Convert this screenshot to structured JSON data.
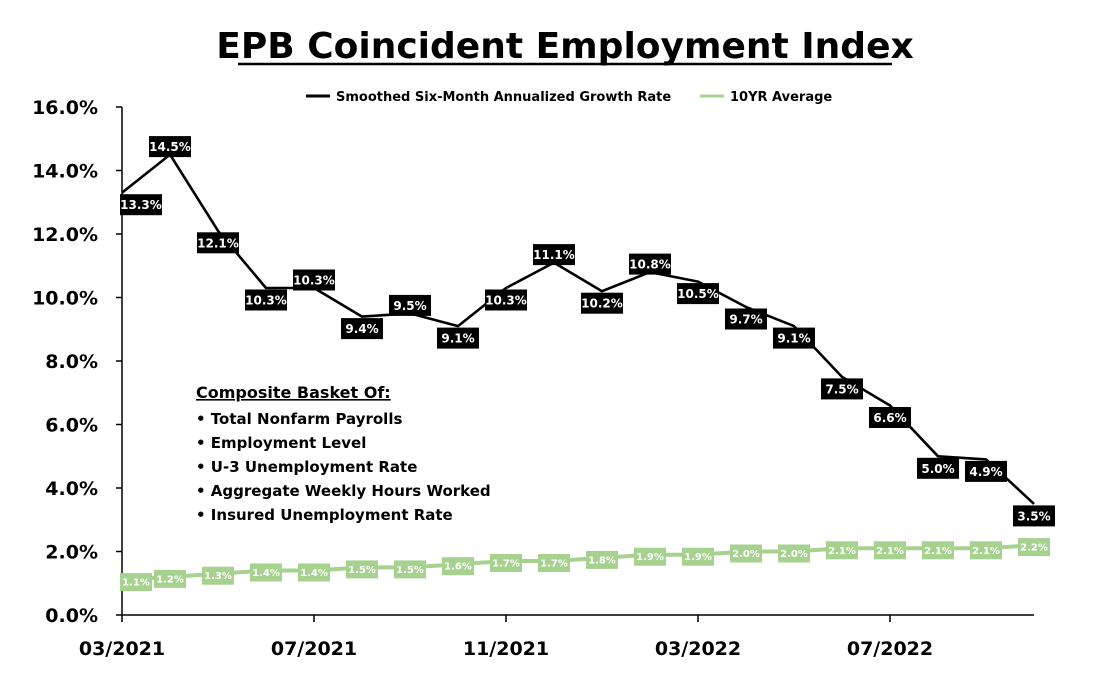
{
  "chart_data": {
    "type": "line",
    "title": "EPB Coincident Employment Index",
    "x_tick_labels": [
      "03/2021",
      "07/2021",
      "11/2021",
      "03/2022",
      "07/2022"
    ],
    "y_tick_labels": [
      "0.0%",
      "2.0%",
      "4.0%",
      "6.0%",
      "8.0%",
      "10.0%",
      "12.0%",
      "14.0%",
      "16.0%"
    ],
    "ylim": [
      0,
      16
    ],
    "y_unit": "%",
    "grid": false,
    "legend_position": "top",
    "x": [
      "2021-03",
      "2021-04",
      "2021-05",
      "2021-06",
      "2021-07",
      "2021-08",
      "2021-09",
      "2021-10",
      "2021-11",
      "2021-12",
      "2022-01",
      "2022-02",
      "2022-03",
      "2022-04",
      "2022-05",
      "2022-06",
      "2022-07",
      "2022-08",
      "2022-09",
      "2022-10"
    ],
    "series": [
      {
        "name": "Smoothed Six-Month Annualized Growth Rate",
        "color": "#000000",
        "values": [
          13.3,
          14.5,
          12.1,
          10.3,
          10.3,
          9.4,
          9.5,
          9.1,
          10.3,
          11.1,
          10.2,
          10.8,
          10.5,
          9.7,
          9.1,
          7.5,
          6.6,
          5.0,
          4.9,
          3.5
        ],
        "labels": [
          "13.3%",
          "14.5%",
          "12.1%",
          "10.3%",
          "10.3%",
          "9.4%",
          "9.5%",
          "9.1%",
          "10.3%",
          "11.1%",
          "10.2%",
          "10.8%",
          "10.5%",
          "9.7%",
          "9.1%",
          "7.5%",
          "6.6%",
          "5.0%",
          "4.9%",
          "3.5%"
        ]
      },
      {
        "name": "10YR Average",
        "color": "#a6d18f",
        "values": [
          1.1,
          1.2,
          1.3,
          1.4,
          1.4,
          1.5,
          1.5,
          1.6,
          1.7,
          1.7,
          1.8,
          1.9,
          1.9,
          2.0,
          2.0,
          2.1,
          2.1,
          2.1,
          2.1,
          2.2
        ],
        "labels": [
          "1.1%",
          "1.2%",
          "1.3%",
          "1.4%",
          "1.4%",
          "1.5%",
          "1.5%",
          "1.6%",
          "1.7%",
          "1.7%",
          "1.8%",
          "1.9%",
          "1.9%",
          "2.0%",
          "2.0%",
          "2.1%",
          "2.1%",
          "2.1%",
          "2.1%",
          "2.2%"
        ]
      }
    ]
  },
  "annotation": {
    "heading": "Composite Basket Of:",
    "items": [
      "• Total Nonfarm Payrolls",
      "• Employment Level",
      "• U-3 Unemployment Rate",
      "• Aggregate Weekly Hours Worked",
      "• Insured Unemployment Rate"
    ]
  }
}
